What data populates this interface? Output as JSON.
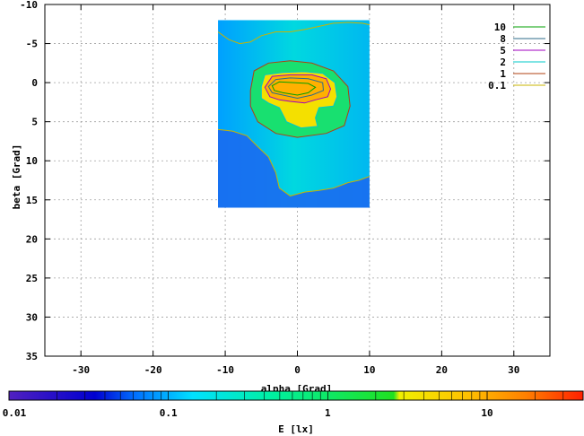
{
  "chart_data": {
    "type": "heatmap",
    "title": "",
    "xlabel": "alpha [Grad]",
    "ylabel": "beta [Grad]",
    "xlim": [
      -35,
      35
    ],
    "ylim": [
      -10,
      35
    ],
    "y_inverted": true,
    "x_ticks": [
      -30,
      -20,
      -10,
      0,
      10,
      20,
      30
    ],
    "x_tick_labels": [
      "-30",
      "-20",
      "-10",
      "0",
      "10",
      "20",
      "30"
    ],
    "y_ticks": [
      -10,
      -5,
      0,
      5,
      10,
      15,
      20,
      25,
      30,
      35
    ],
    "y_tick_labels": [
      "-10",
      "-5",
      "0",
      "5",
      "10",
      "15",
      "20",
      "25",
      "30",
      "35"
    ],
    "grid": true,
    "data_extent": {
      "alpha": [
        -11,
        10
      ],
      "beta": [
        -8,
        16
      ]
    },
    "contours": [
      {
        "name": "10",
        "level": 10,
        "color": "#00a000"
      },
      {
        "name": "8",
        "level": 8,
        "color": "#2e6b8a"
      },
      {
        "name": "5",
        "level": 5,
        "color": "#a000c0"
      },
      {
        "name": "2",
        "level": 2,
        "color": "#00c8c8"
      },
      {
        "name": "1",
        "level": 1,
        "color": "#b04010"
      },
      {
        "name": "0.1",
        "level": 0.1,
        "color": "#c8b400"
      }
    ],
    "legend_position": "top-right",
    "colorbar": {
      "label": "E [lx]",
      "scale": "log",
      "range": [
        0.01,
        40
      ],
      "tick_labels": [
        "0.01",
        "0.1",
        "1",
        "10"
      ],
      "tick_values": [
        0.01,
        0.1,
        1,
        10
      ],
      "colors": [
        "#5020c0",
        "#0000d0",
        "#0070ff",
        "#00e0ff",
        "#00f0a0",
        "#20e020",
        "#f0f000",
        "#ffa000",
        "#ff2000"
      ]
    }
  }
}
